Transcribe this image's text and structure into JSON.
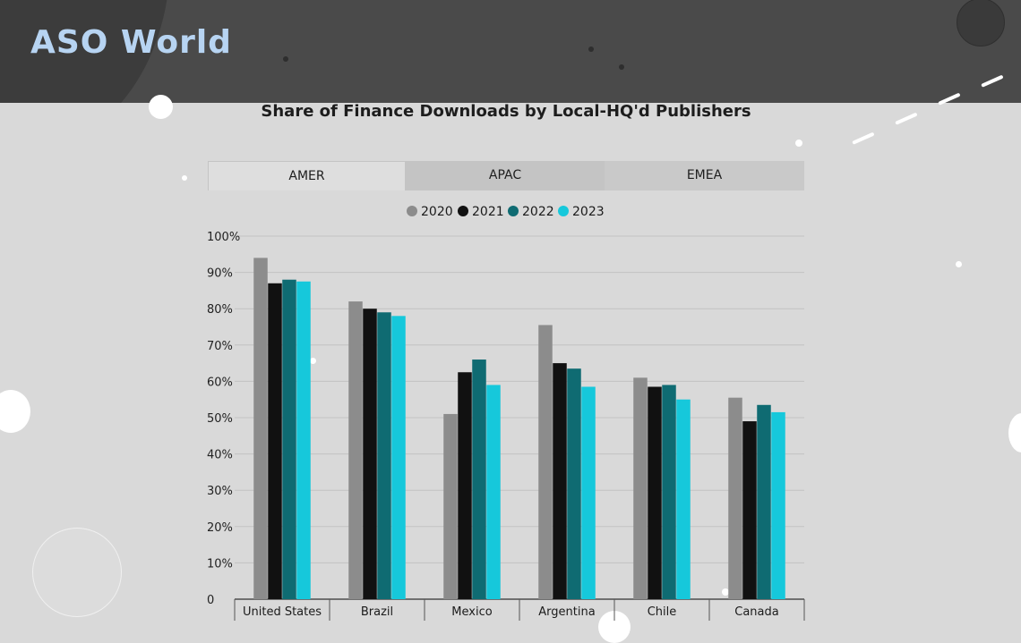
{
  "brand": {
    "logo_text": "ASO World"
  },
  "tabs": [
    {
      "label": "AMER",
      "selected": true
    },
    {
      "label": "APAC",
      "selected": false
    },
    {
      "label": "EMEA",
      "selected": false
    }
  ],
  "colors": {
    "2020": "#8c8c8c",
    "2021": "#111111",
    "2022": "#0f6b72",
    "2023": "#16c8db",
    "brand": "#b7d4f2"
  },
  "chart_data": {
    "type": "bar",
    "title": "Share of Finance Downloads by Local-HQ'd Publishers",
    "categories": [
      "United States",
      "Brazil",
      "Mexico",
      "Argentina",
      "Chile",
      "Canada"
    ],
    "series": [
      {
        "name": "2020",
        "values": [
          94,
          82,
          51,
          75.5,
          61,
          55.5
        ]
      },
      {
        "name": "2021",
        "values": [
          87,
          80,
          62.5,
          65,
          58.5,
          49
        ]
      },
      {
        "name": "2022",
        "values": [
          88,
          79,
          66,
          63.5,
          59,
          53.5
        ]
      },
      {
        "name": "2023",
        "values": [
          87.5,
          78,
          59,
          58.5,
          55,
          51.5
        ]
      }
    ],
    "ylim": [
      0,
      100
    ],
    "yticks": [
      "0",
      "10%",
      "20%",
      "30%",
      "40%",
      "50%",
      "60%",
      "70%",
      "80%",
      "90%",
      "100%"
    ],
    "grid": true,
    "legend_position": "top-center"
  }
}
